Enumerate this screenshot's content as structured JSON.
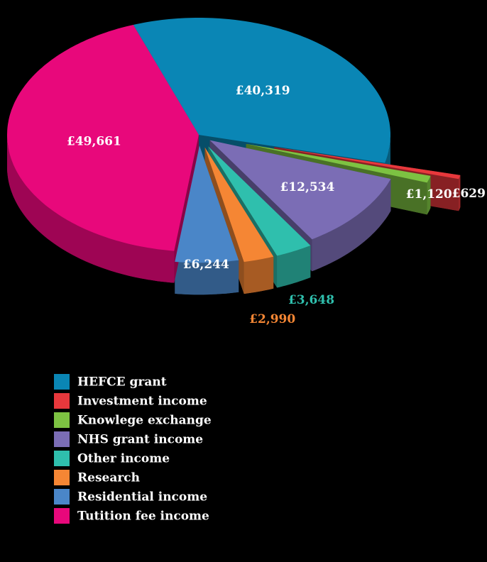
{
  "chart_data": {
    "type": "pie",
    "categories": [
      "HEFCE grant",
      "Investment income",
      "Knowlege exchange",
      "NHS grant income",
      "Other income",
      "Research",
      "Residential income",
      "Tutition fee income"
    ],
    "values": [
      40319,
      629,
      1120,
      12534,
      3648,
      2990,
      6244,
      49661
    ],
    "value_labels": [
      "£40,319",
      "£629",
      "£1,120",
      "£12,534",
      "£3,648",
      "£2,990",
      "£6,244",
      "£49,661"
    ],
    "colors": [
      "#0a86b5",
      "#e8383c",
      "#7dc242",
      "#7b6db5",
      "#2fbfad",
      "#f58634",
      "#4a86c8",
      "#e8087b"
    ],
    "legend": "bottom-left"
  }
}
